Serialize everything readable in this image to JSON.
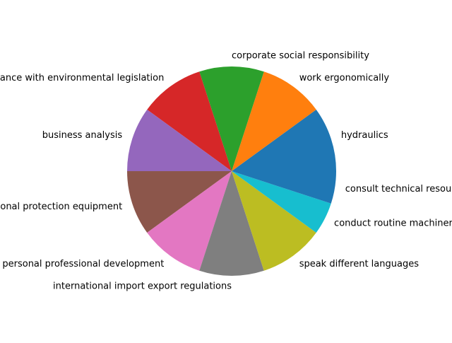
{
  "chart_data": {
    "type": "pie",
    "title": "",
    "start_angle_deg": 0,
    "direction": "counterclockwise",
    "slices": [
      {
        "label": "hydraulics",
        "value": 2,
        "color": "#1f77b4"
      },
      {
        "label": "work ergonomically",
        "value": 2,
        "color": "#ff7f0e"
      },
      {
        "label": "corporate social responsibility",
        "value": 2,
        "color": "#2ca02c"
      },
      {
        "label": "compliance with environmental legislation",
        "value": 2,
        "color": "#d62728"
      },
      {
        "label": "business analysis",
        "value": 2,
        "color": "#9467bd"
      },
      {
        "label": "personal protection equipment",
        "value": 2,
        "color": "#8c564b"
      },
      {
        "label": "manage personal professional development",
        "value": 2,
        "color": "#e377c2"
      },
      {
        "label": "international import export regulations",
        "value": 2,
        "color": "#7f7f7f"
      },
      {
        "label": "speak different languages",
        "value": 2,
        "color": "#bcbd22"
      },
      {
        "label": "conduct routine machinery checks",
        "value": 1,
        "color": "#17becf"
      },
      {
        "label": "consult technical resources",
        "value": 1,
        "color": "#1f77b4"
      }
    ]
  }
}
